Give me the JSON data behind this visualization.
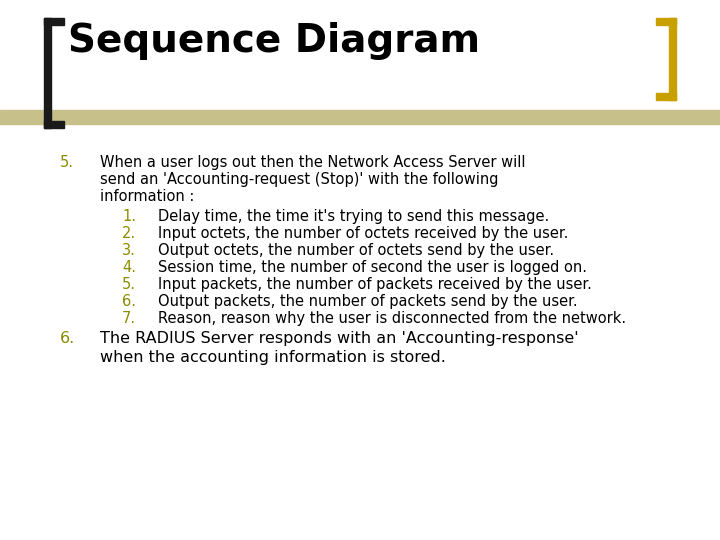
{
  "title": "Sequence Diagram",
  "title_fontsize": 28,
  "bg_color": "#FFFFFF",
  "bracket_color": "#1a1a1a",
  "corner_bracket_color": "#C8A000",
  "item5_label": "5.",
  "item5_line1": "When a user logs out then the Network Access Server will",
  "item5_line2": "send an 'Accounting-request (Stop)' with the following",
  "item5_line3": "information :",
  "sub_items": [
    {
      "num": "1.",
      "text": "Delay time, the time it's trying to send this message."
    },
    {
      "num": "2.",
      "text": "Input octets, the number of octets received by the user."
    },
    {
      "num": "3.",
      "text": "Output octets, the number of octets send by the user."
    },
    {
      "num": "4.",
      "text": "Session time, the number of second the user is logged on."
    },
    {
      "num": "5.",
      "text": "Input packets, the number of packets received by the user."
    },
    {
      "num": "6.",
      "text": "Output packets, the number of packets send by the user."
    },
    {
      "num": "7.",
      "text": "Reason, reason why the user is disconnected from the network."
    }
  ],
  "item6_label": "6.",
  "item6_line1": "The RADIUS Server responds with an 'Accounting-response'",
  "item6_line2": "when the accounting information is stored.",
  "text_color": "#000000",
  "body_fontsize": 10.5,
  "num5_color": "#8B8B00",
  "num6_color": "#8B8B00"
}
